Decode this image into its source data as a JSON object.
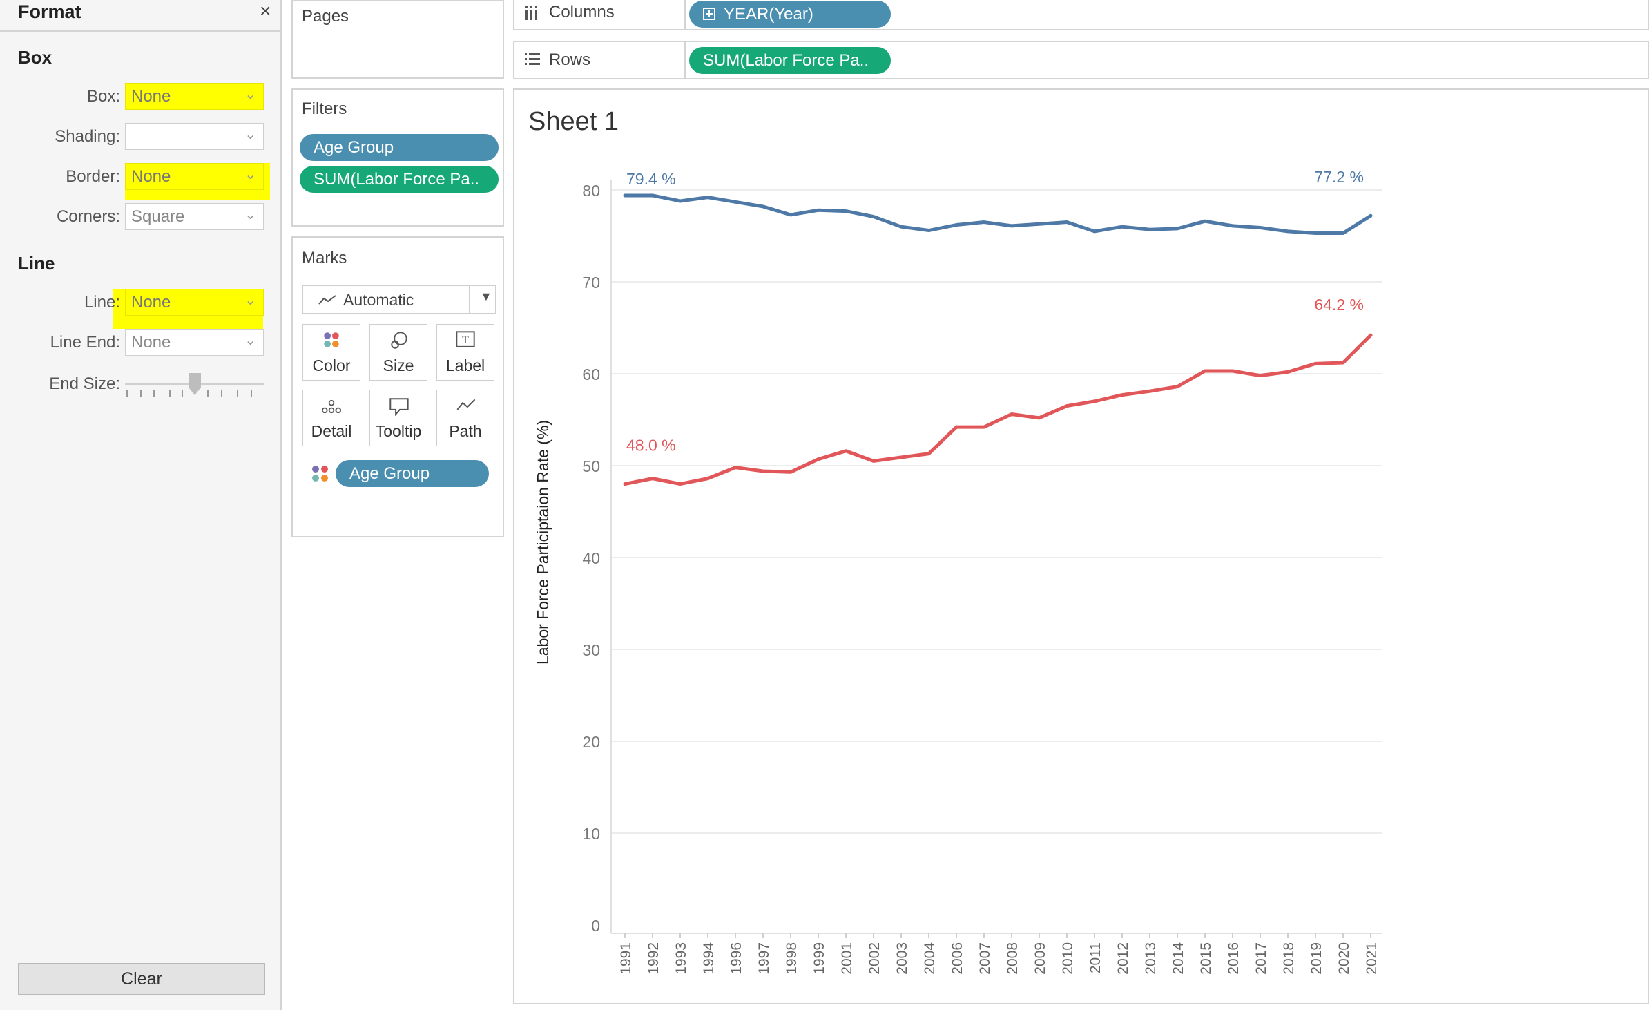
{
  "format_pane": {
    "title": "Format",
    "close_glyph": "×",
    "box_section": {
      "heading": "Box",
      "box": {
        "label": "Box:",
        "value": "None"
      },
      "shading": {
        "label": "Shading:",
        "value": ""
      },
      "border": {
        "label": "Border:",
        "value": "None"
      },
      "corners": {
        "label": "Corners:",
        "value": "Square"
      }
    },
    "line_section": {
      "heading": "Line",
      "line": {
        "label": "Line:",
        "value": "None"
      },
      "line_end": {
        "label": "Line End:",
        "value": "None"
      },
      "end_size": {
        "label": "End Size:",
        "level": 0.5
      }
    },
    "clear_label": "Clear",
    "highlight_color": "#ffff00"
  },
  "pages_card": {
    "title": "Pages"
  },
  "filters_card": {
    "title": "Filters",
    "pills": [
      "Age Group",
      "SUM(Labor Force Pa.."
    ]
  },
  "marks_card": {
    "title": "Marks",
    "mark_type": "Automatic",
    "buttons": [
      "Color",
      "Size",
      "Label",
      "Detail",
      "Tooltip",
      "Path"
    ],
    "color_field": "Age Group"
  },
  "shelves": {
    "columns": {
      "label": "Columns",
      "pill": "YEAR(Year)"
    },
    "rows": {
      "label": "Rows",
      "pill": "SUM(Labor Force Pa.."
    }
  },
  "colors": {
    "pill_dimension": "#4b8fb0",
    "pill_measure": "#16a876",
    "series_blue": "#4e79a7",
    "series_red": "#e15759"
  },
  "sheet": {
    "title": "Sheet 1"
  },
  "chart_data": {
    "type": "line",
    "title": "Sheet 1",
    "ylabel": "Labor Force Participtaion Rate (%)",
    "xlabel": "",
    "ylim": [
      0,
      80
    ],
    "yticks": [
      0,
      10,
      20,
      30,
      40,
      50,
      60,
      70,
      80
    ],
    "grid": true,
    "categories": [
      "1991",
      "1992",
      "1993",
      "1994",
      "1996",
      "1997",
      "1998",
      "1999",
      "2001",
      "2002",
      "2003",
      "2004",
      "2006",
      "2007",
      "2008",
      "2009",
      "2010",
      "2011",
      "2012",
      "2013",
      "2014",
      "2015",
      "2016",
      "2017",
      "2018",
      "2019",
      "2020",
      "2021"
    ],
    "series": [
      {
        "color": "#4e79a7",
        "values": [
          79.4,
          79.4,
          78.8,
          79.2,
          78.7,
          78.2,
          77.3,
          77.8,
          77.7,
          77.1,
          76.0,
          75.6,
          76.2,
          76.5,
          76.1,
          76.3,
          76.5,
          75.5,
          76.0,
          75.7,
          75.8,
          76.6,
          76.1,
          75.9,
          75.5,
          75.3,
          75.3,
          77.2
        ],
        "labels": {
          "first": "79.4 %",
          "last": "77.2 %"
        }
      },
      {
        "color": "#e15759",
        "values": [
          48.0,
          48.6,
          48.0,
          48.6,
          49.8,
          49.4,
          49.3,
          50.7,
          51.6,
          50.5,
          50.9,
          51.3,
          54.2,
          54.2,
          55.6,
          55.2,
          56.5,
          57.0,
          57.7,
          58.1,
          58.6,
          60.3,
          60.3,
          59.8,
          60.2,
          61.1,
          61.2,
          64.2
        ],
        "labels": {
          "first": "48.0 %",
          "last": "64.2 %"
        }
      }
    ]
  }
}
